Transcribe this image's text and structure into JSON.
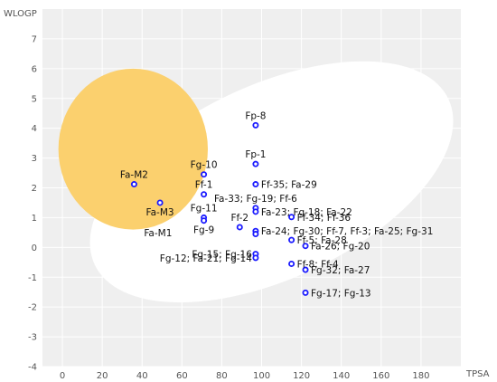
{
  "chart_data": {
    "type": "scatter",
    "xlabel": "TPSA",
    "ylabel": "WLOGP",
    "xlim": [
      -10,
      200
    ],
    "ylim": [
      -4,
      8
    ],
    "xticks": [
      0,
      20,
      40,
      60,
      80,
      100,
      120,
      140,
      160,
      180
    ],
    "yticks": [
      -4,
      -3,
      -2,
      -1,
      0,
      1,
      2,
      3,
      4,
      5,
      6,
      7
    ],
    "grid": true,
    "colors": {
      "plot_background": "#efefef",
      "grid": "#ffffff",
      "white_region": "#ffffff",
      "yolk_region": "#fbd06e",
      "marker_stroke": "#1a1aff",
      "marker_fill": "#ffffff"
    },
    "regions": [
      {
        "name": "white",
        "cx": 105,
        "cy": 2.2,
        "rx": 98,
        "ry": 3.25,
        "rotate_deg": -25
      },
      {
        "name": "yolk",
        "cx": 35.5,
        "cy": 3.3,
        "rx": 37.5,
        "ry": 2.7,
        "rotate_deg": 0
      }
    ],
    "points": [
      {
        "x": 36,
        "y": 2.12,
        "label": "Fa-M2",
        "label_pos": "above"
      },
      {
        "x": 49,
        "y": 1.5,
        "label": "Fa-M3",
        "label_pos": "below"
      },
      {
        "x": 71,
        "y": 2.45,
        "label": "Fg-10",
        "label_pos": "above"
      },
      {
        "x": 71,
        "y": 1.78,
        "label": "Ff-1",
        "label_pos": "above"
      },
      {
        "x": 71,
        "y": 1.0,
        "label": "Fg-11",
        "label_pos": "above"
      },
      {
        "x": 71,
        "y": 0.9,
        "label": "Fg-9",
        "label_pos": "below"
      },
      {
        "x": 89,
        "y": 0.68,
        "label": "Ff-2",
        "label_pos": "above"
      },
      {
        "x": 97,
        "y": 4.1,
        "label": "Fp-8",
        "label_pos": "above"
      },
      {
        "x": 97,
        "y": 2.8,
        "label": "Fp-1",
        "label_pos": "above"
      },
      {
        "x": 97,
        "y": 2.12,
        "label": "Ff-35; Fa-29",
        "label_pos": "right"
      },
      {
        "x": 97,
        "y": 1.32,
        "label": "Fa-33; Fg-19; Ff-6",
        "label_pos": "above"
      },
      {
        "x": 97,
        "y": 1.2,
        "label": "Fa-23; Fg-18; Fa-22",
        "label_pos": "right"
      },
      {
        "x": 97,
        "y": 0.55,
        "label": "Fa-24; Fg-30; Ff-7, Ff-3; Fa-25; Fg-31",
        "label_pos": "right"
      },
      {
        "x": 97,
        "y": 0.45,
        "label": "",
        "label_pos": "none"
      },
      {
        "x": 97,
        "y": -0.22,
        "label": "Fg-15; Fg-16",
        "label_pos": "left"
      },
      {
        "x": 97,
        "y": -0.35,
        "label": "Fg-12; Fa-21; Fg-14",
        "label_pos": "left"
      },
      {
        "x": 115,
        "y": 1.02,
        "label": "Ff-34; Ff-36",
        "label_pos": "right"
      },
      {
        "x": 115,
        "y": 0.25,
        "label": "Ff-5; Fa-28",
        "label_pos": "right"
      },
      {
        "x": 115,
        "y": -0.55,
        "label": "Ff-8; Ff-4",
        "label_pos": "right"
      },
      {
        "x": 122,
        "y": 0.05,
        "label": "Fa-26; Fg-20",
        "label_pos": "right"
      },
      {
        "x": 122,
        "y": -0.75,
        "label": "Fg-32; Fa-27",
        "label_pos": "right"
      },
      {
        "x": 122,
        "y": -1.52,
        "label": "Fg-17; Fg-13",
        "label_pos": "right"
      }
    ],
    "annotations": [
      {
        "text": "Fa-M1",
        "x": 48,
        "y": 0.5
      }
    ]
  }
}
